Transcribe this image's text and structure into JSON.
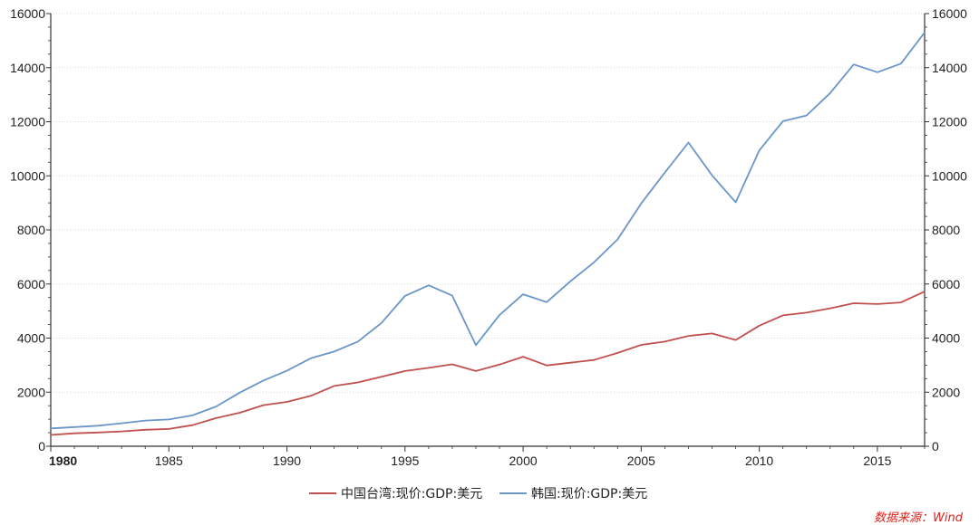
{
  "source_note": "数据来源：Wind",
  "colors": {
    "taiwan": "#c0504d",
    "korea": "#6a96c8",
    "axis": "#333333",
    "grid": "#d9d9d9",
    "source": "#e0201b"
  },
  "chart_data": {
    "type": "line",
    "title": "",
    "xlabel": "",
    "ylabel": "",
    "xlim": [
      1980,
      2017
    ],
    "ylim": [
      0,
      16000
    ],
    "y2lim": [
      0,
      16000
    ],
    "x_ticks": [
      1980,
      1985,
      1990,
      1995,
      2000,
      2005,
      2010,
      2015
    ],
    "y_ticks": [
      0,
      2000,
      4000,
      6000,
      8000,
      10000,
      12000,
      14000,
      16000
    ],
    "grid": "horizontal-dotted",
    "legend_position": "bottom-center",
    "x": [
      1980,
      1981,
      1982,
      1983,
      1984,
      1985,
      1986,
      1987,
      1988,
      1989,
      1990,
      1991,
      1992,
      1993,
      1994,
      1995,
      1996,
      1997,
      1998,
      1999,
      2000,
      2001,
      2002,
      2003,
      2004,
      2005,
      2006,
      2007,
      2008,
      2009,
      2010,
      2011,
      2012,
      2013,
      2014,
      2015,
      2016,
      2017
    ],
    "series": [
      {
        "name": "中国台湾:现价:GDP:美元",
        "color": "#c0504d",
        "values": [
          420,
          480,
          510,
          550,
          610,
          640,
          780,
          1040,
          1240,
          1520,
          1640,
          1860,
          2230,
          2360,
          2570,
          2780,
          2900,
          3030,
          2780,
          3020,
          3310,
          2990,
          3090,
          3190,
          3450,
          3750,
          3870,
          4080,
          4170,
          3930,
          4460,
          4840,
          4940,
          5100,
          5290,
          5260,
          5320,
          5720
        ]
      },
      {
        "name": "韩国:现价:GDP:美元",
        "color": "#6a96c8",
        "values": [
          660,
          710,
          760,
          850,
          950,
          990,
          1140,
          1470,
          1980,
          2430,
          2790,
          3250,
          3500,
          3870,
          4560,
          5560,
          5950,
          5570,
          3740,
          4850,
          5620,
          5330,
          6100,
          6800,
          7650,
          8980,
          10120,
          11230,
          10020,
          9020,
          10940,
          12020,
          12230,
          13060,
          14120,
          13830,
          14150,
          15300
        ]
      }
    ]
  }
}
